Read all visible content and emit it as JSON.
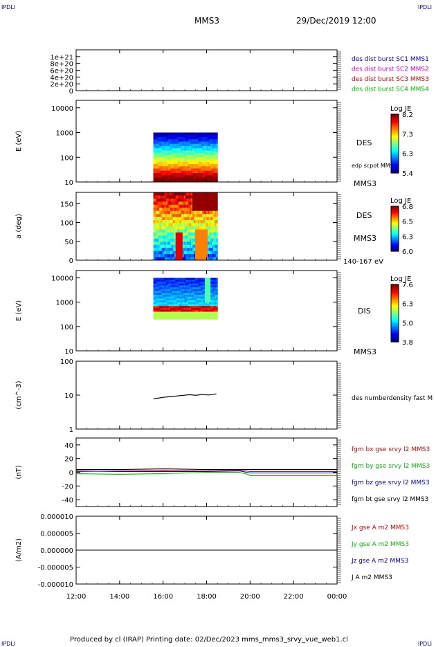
{
  "header": {
    "corner_label": "IPDLI",
    "spacecraft": "MMS3",
    "date_time": "29/Dec/2019 12:00"
  },
  "footer": {
    "text": "Produced by cl (IRAP)   Printing date: 02/Dec/2023   mms_mms3_srvy_vue_web1.cl"
  },
  "x_axis": {
    "ticks": [
      "12:00",
      "14:00",
      "16:00",
      "18:00",
      "20:00",
      "22:00",
      "00:00"
    ],
    "hours": [
      12,
      14,
      16,
      18,
      20,
      22,
      24
    ],
    "range_hours": [
      12,
      24
    ]
  },
  "colors": {
    "mms1": "#0000c8",
    "mms2": "#e000e0",
    "mms3": "#e00000",
    "mms4": "#00c000",
    "bx": "#e00000",
    "by": "#00c000",
    "bz": "#0000c8",
    "bt": "#000000"
  },
  "chart_data": [
    {
      "type": "line",
      "panel": "burst",
      "ylabel": "",
      "ylim": [
        0,
        1.2e+21
      ],
      "yticks": [
        "1e+21",
        "8e+20",
        "6e+20",
        "4e+20",
        "2e+20",
        "0"
      ],
      "ytick_values": [
        1e+21,
        8e+20,
        6e+20,
        4e+20,
        2e+20,
        0
      ],
      "series": [
        {
          "name": "des dist burst SC1 MMS1",
          "values": []
        },
        {
          "name": "des dist burst SC2 MMS2",
          "values": []
        },
        {
          "name": "des dist burst SC3 MMS3",
          "values": []
        },
        {
          "name": "des dist burst SC4 MMS4",
          "values": []
        }
      ]
    },
    {
      "type": "heatmap",
      "panel": "des_energy",
      "ylabel": "E (eV)",
      "yscale": "log",
      "ylim": [
        10,
        20000
      ],
      "yticks": [
        "10000",
        "1000",
        "100",
        "10"
      ],
      "ytick_values": [
        10000,
        1000,
        100,
        10
      ],
      "x_range_hours": [
        15.55,
        18.5
      ],
      "y_range": [
        10,
        1000
      ],
      "label": "DES",
      "sublabel": "edp scpot MMS3",
      "spacecraft": "MMS3",
      "colorbar": {
        "title": "Log JE",
        "ticks": [
          "8.2",
          "7.3",
          "6.3",
          "5.4"
        ],
        "min": 5.4,
        "max": 8.2
      }
    },
    {
      "type": "heatmap",
      "panel": "des_pitch",
      "ylabel": "a (deg)",
      "ylim": [
        0,
        180
      ],
      "yticks": [
        "150",
        "100",
        "50",
        "0"
      ],
      "ytick_values": [
        150,
        100,
        50,
        0
      ],
      "x_range_hours": [
        15.55,
        18.5
      ],
      "y_range": [
        0,
        180
      ],
      "label": "DES",
      "spacecraft": "MMS3",
      "energy_range": "140-167 eV",
      "colorbar": {
        "title": "Log JE",
        "ticks": [
          "6.8",
          "6.5",
          "6.3",
          "6.0"
        ],
        "min": 6.0,
        "max": 6.8
      }
    },
    {
      "type": "heatmap",
      "panel": "dis_energy",
      "ylabel": "E (eV)",
      "yscale": "log",
      "ylim": [
        10,
        20000
      ],
      "yticks": [
        "10000",
        "1000",
        "100",
        "10"
      ],
      "ytick_values": [
        10000,
        1000,
        100,
        10
      ],
      "x_range_hours": [
        15.55,
        18.5
      ],
      "y_range": [
        200,
        10000
      ],
      "label": "DIS",
      "spacecraft": "MMS3",
      "colorbar": {
        "title": "Log JE",
        "ticks": [
          "7.6",
          "6.3",
          "5.0",
          "3.8"
        ],
        "min": 3.8,
        "max": 7.6
      }
    },
    {
      "type": "line",
      "panel": "density",
      "ylabel": "(cm^-3)",
      "yscale": "log",
      "ylim": [
        1,
        100
      ],
      "yticks": [
        "100",
        "10",
        "1"
      ],
      "ytick_values": [
        100,
        10,
        1
      ],
      "series": [
        {
          "name": "des numberdensity fast M",
          "x": [
            15.55,
            15.8,
            16.0,
            16.3,
            16.6,
            16.9,
            17.2,
            17.5,
            17.8,
            18.1,
            18.3,
            18.45
          ],
          "values": [
            7.8,
            8.2,
            8.6,
            9.0,
            9.4,
            9.8,
            10.3,
            9.9,
            10.4,
            10.1,
            10.5,
            10.9
          ]
        }
      ]
    },
    {
      "type": "line",
      "panel": "fgm",
      "ylabel": "(nT)",
      "ylim": [
        -50,
        50
      ],
      "yticks": [
        "40",
        "20",
        "0",
        "-20",
        "-40"
      ],
      "ytick_values": [
        40,
        20,
        0,
        -20,
        -40
      ],
      "series": [
        {
          "name": "fgm bx gse srvy l2 MMS3",
          "x": [
            12,
            14,
            16,
            18,
            19.5,
            20,
            22,
            24
          ],
          "values": [
            1,
            2,
            3,
            2,
            3,
            1,
            1,
            1
          ]
        },
        {
          "name": "fgm by gse srvy l2 MMS3",
          "x": [
            12,
            14,
            16,
            18,
            19.5,
            19.9,
            20,
            22,
            24
          ],
          "values": [
            -2,
            -3,
            -2,
            0,
            0,
            -3,
            -5,
            -5,
            -5
          ]
        },
        {
          "name": "fgm bz gse srvy l2 MMS3",
          "x": [
            12,
            14,
            16,
            18,
            19.5,
            20,
            22,
            24
          ],
          "values": [
            2,
            1,
            1,
            1,
            2,
            -1,
            -1,
            -1
          ]
        },
        {
          "name": "fgm bt gse srvy l2 MMS3",
          "x": [
            12,
            14,
            16,
            18,
            19.5,
            20,
            22,
            24
          ],
          "values": [
            4,
            4,
            5,
            4,
            4,
            4,
            4,
            4
          ]
        }
      ]
    },
    {
      "type": "line",
      "panel": "current",
      "ylabel": "(A/m2)",
      "ylim": [
        -1e-05,
        1e-05
      ],
      "yticks": [
        "0.000010",
        "0.000005",
        "0.000000",
        "-0.000005",
        "-0.000010"
      ],
      "ytick_values": [
        1e-05,
        5e-06,
        0,
        -5e-06,
        -1e-05
      ],
      "series": [
        {
          "name": "Jx gse A m2 MMS3",
          "values": []
        },
        {
          "name": "Jy gse A m2 MMS3",
          "values": []
        },
        {
          "name": "Jz gse A m2 MMS3",
          "values": []
        },
        {
          "name": "J A m2 MMS3",
          "x": [
            12,
            24
          ],
          "values": [
            0,
            0
          ]
        }
      ]
    }
  ]
}
